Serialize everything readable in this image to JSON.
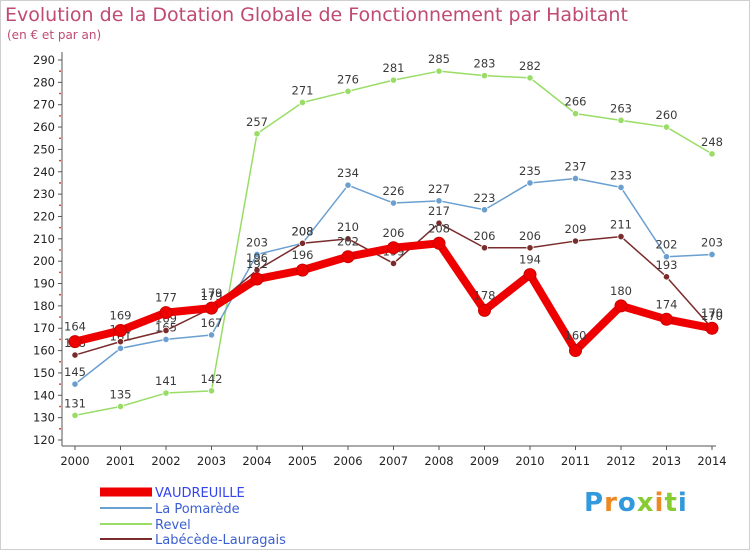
{
  "chart_data": {
    "type": "line",
    "title": "Evolution de la Dotation Globale de Fonctionnement par Habitant",
    "subtitle": "(en € et par an)",
    "x": [
      "2000",
      "2001",
      "2002",
      "2003",
      "2004",
      "2005",
      "2006",
      "2007",
      "2008",
      "2009",
      "2010",
      "2011",
      "2012",
      "2013",
      "2014"
    ],
    "ylim": [
      120,
      290
    ],
    "yticks": [
      120,
      130,
      140,
      150,
      160,
      170,
      180,
      190,
      200,
      210,
      220,
      230,
      240,
      250,
      260,
      270,
      280,
      290
    ],
    "grid": false,
    "legend_position": "bottom-left",
    "series": [
      {
        "name": "Revel",
        "color": "#99dd66",
        "style": "thin",
        "values": [
          131,
          135,
          141,
          142,
          257,
          271,
          276,
          281,
          285,
          283,
          282,
          266,
          263,
          260,
          248
        ]
      },
      {
        "name": "La Pomarède",
        "color": "#6a9fd0",
        "style": "thin",
        "values": [
          145,
          161,
          165,
          167,
          203,
          208,
          234,
          226,
          227,
          223,
          235,
          237,
          233,
          202,
          203
        ]
      },
      {
        "name": "Labécède-Lauragais",
        "color": "#7a2b2b",
        "style": "thin",
        "values": [
          158,
          164,
          169,
          179,
          196,
          208,
          210,
          199,
          217,
          206,
          206,
          209,
          211,
          193,
          170
        ]
      },
      {
        "name": "VAUDREUILLE",
        "color": "#ee0000",
        "style": "thick",
        "values": [
          164,
          169,
          177,
          179,
          192,
          196,
          202,
          206,
          208,
          178,
          194,
          160,
          180,
          174,
          170
        ]
      }
    ],
    "legend": [
      "VAUDREUILLE",
      "La Pomarède",
      "Revel",
      "Labécède-Lauragais"
    ]
  },
  "logo": {
    "text": "Proxiti"
  }
}
